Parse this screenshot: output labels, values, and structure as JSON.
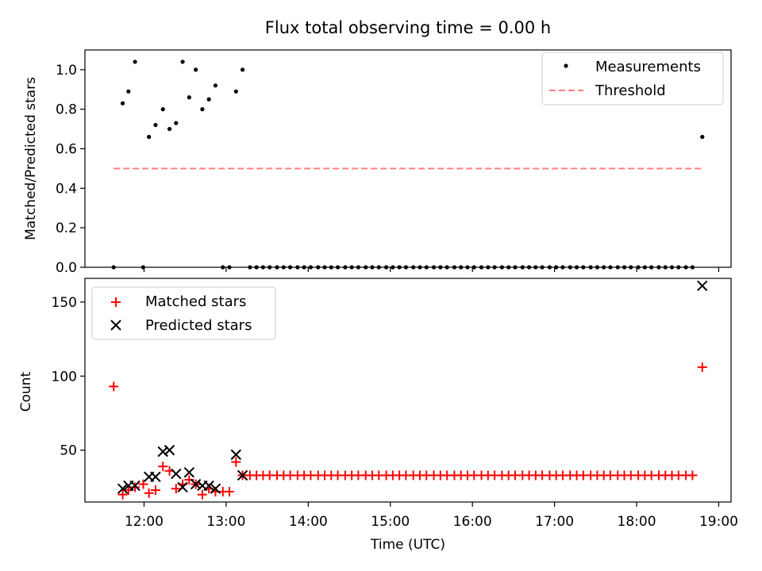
{
  "chart_data": {
    "title": "Flux total observing time = 0.00 h",
    "xlabel": "Time (UTC)",
    "x_ticks": [
      "12:00",
      "13:00",
      "14:00",
      "15:00",
      "16:00",
      "17:00",
      "18:00",
      "19:00"
    ],
    "x_tick_hours": [
      12,
      13,
      14,
      15,
      16,
      17,
      18,
      19
    ],
    "xlim_hours": [
      11.28,
      19.15
    ],
    "panels": [
      {
        "type": "scatter",
        "ylabel": "Matched/Predicted stars",
        "ylim": [
          0.0,
          1.1
        ],
        "yticks": [
          0.0,
          0.2,
          0.4,
          0.6,
          0.8,
          1.0
        ],
        "ytick_labels": [
          "0.0",
          "0.2",
          "0.4",
          "0.6",
          "0.8",
          "1.0"
        ],
        "legend_position": "upper right",
        "series": [
          {
            "name": "Measurements",
            "marker": "dot",
            "color": "#000000",
            "x_hours": [
              11.63,
              11.74,
              11.81,
              11.89,
              11.99,
              12.06,
              12.14,
              12.23,
              12.31,
              12.39,
              12.47,
              12.55,
              12.63,
              12.71,
              12.79,
              12.87,
              12.96,
              13.04,
              13.12,
              13.2,
              13.29,
              13.37,
              13.45,
              13.53,
              13.62,
              13.7,
              13.78,
              13.87,
              13.95,
              14.03,
              14.12,
              14.2,
              14.28,
              14.36,
              14.45,
              14.53,
              14.61,
              14.7,
              14.78,
              14.86,
              14.95,
              15.03,
              15.11,
              15.19,
              15.28,
              15.36,
              15.44,
              15.53,
              15.61,
              15.69,
              15.78,
              15.86,
              15.94,
              16.02,
              16.11,
              16.19,
              16.27,
              16.36,
              16.44,
              16.52,
              16.61,
              16.69,
              16.77,
              16.85,
              16.94,
              17.02,
              17.1,
              17.19,
              17.27,
              17.35,
              17.44,
              17.52,
              17.6,
              17.68,
              17.77,
              17.85,
              17.93,
              18.02,
              18.1,
              18.18,
              18.27,
              18.35,
              18.43,
              18.51,
              18.6,
              18.68,
              18.8
            ],
            "y": [
              0.0,
              0.83,
              0.89,
              1.04,
              0.0,
              0.66,
              0.72,
              0.8,
              0.7,
              0.73,
              1.04,
              0.86,
              1.0,
              0.8,
              0.85,
              0.92,
              0.0,
              0.0,
              0.89,
              1.0,
              0.0,
              0.0,
              0.0,
              0.0,
              0.0,
              0.0,
              0.0,
              0.0,
              0.0,
              0.0,
              0.0,
              0.0,
              0.0,
              0.0,
              0.0,
              0.0,
              0.0,
              0.0,
              0.0,
              0.0,
              0.0,
              0.0,
              0.0,
              0.0,
              0.0,
              0.0,
              0.0,
              0.0,
              0.0,
              0.0,
              0.0,
              0.0,
              0.0,
              0.0,
              0.0,
              0.0,
              0.0,
              0.0,
              0.0,
              0.0,
              0.0,
              0.0,
              0.0,
              0.0,
              0.0,
              0.0,
              0.0,
              0.0,
              0.0,
              0.0,
              0.0,
              0.0,
              0.0,
              0.0,
              0.0,
              0.0,
              0.0,
              0.0,
              0.0,
              0.0,
              0.0,
              0.0,
              0.0,
              0.0,
              0.0,
              0.0,
              0.66
            ]
          },
          {
            "name": "Threshold",
            "marker": "dashed-line",
            "color": "#ff8080",
            "x_hours": [
              11.63,
              18.8
            ],
            "y": [
              0.5,
              0.5
            ]
          }
        ]
      },
      {
        "type": "scatter",
        "ylabel": "Count",
        "ylim": [
          15,
          166
        ],
        "yticks": [
          50,
          100,
          150
        ],
        "ytick_labels": [
          "50",
          "100",
          "150"
        ],
        "legend_position": "upper left",
        "series": [
          {
            "name": "Matched stars",
            "marker": "plus",
            "color": "#ff0000",
            "x_hours": [
              11.63,
              11.74,
              11.81,
              11.89,
              11.99,
              12.06,
              12.14,
              12.23,
              12.31,
              12.39,
              12.47,
              12.55,
              12.63,
              12.71,
              12.79,
              12.87,
              12.96,
              13.04,
              13.12,
              13.2,
              13.29,
              13.37,
              13.45,
              13.53,
              13.62,
              13.7,
              13.78,
              13.87,
              13.95,
              14.03,
              14.12,
              14.2,
              14.28,
              14.36,
              14.45,
              14.53,
              14.61,
              14.7,
              14.78,
              14.86,
              14.95,
              15.03,
              15.11,
              15.19,
              15.28,
              15.36,
              15.44,
              15.53,
              15.61,
              15.69,
              15.78,
              15.86,
              15.94,
              16.02,
              16.11,
              16.19,
              16.27,
              16.36,
              16.44,
              16.52,
              16.61,
              16.69,
              16.77,
              16.85,
              16.94,
              17.02,
              17.1,
              17.19,
              17.27,
              17.35,
              17.44,
              17.52,
              17.6,
              17.68,
              17.77,
              17.85,
              17.93,
              18.02,
              18.1,
              18.18,
              18.27,
              18.35,
              18.43,
              18.51,
              18.6,
              18.68,
              18.8
            ],
            "y": [
              93,
              20,
              23,
              25,
              27,
              21,
              23,
              39,
              36,
              24,
              27,
              30,
              27,
              20,
              24,
              22,
              22,
              22,
              42,
              33,
              33,
              33,
              33,
              33,
              33,
              33,
              33,
              33,
              33,
              33,
              33,
              33,
              33,
              33,
              33,
              33,
              33,
              33,
              33,
              33,
              33,
              33,
              33,
              33,
              33,
              33,
              33,
              33,
              33,
              33,
              33,
              33,
              33,
              33,
              33,
              33,
              33,
              33,
              33,
              33,
              33,
              33,
              33,
              33,
              33,
              33,
              33,
              33,
              33,
              33,
              33,
              33,
              33,
              33,
              33,
              33,
              33,
              33,
              33,
              33,
              33,
              33,
              33,
              33,
              33,
              33,
              106
            ]
          },
          {
            "name": "Predicted stars",
            "marker": "x",
            "color": "#000000",
            "x_hours": [
              11.74,
              11.81,
              11.89,
              12.06,
              12.14,
              12.23,
              12.31,
              12.39,
              12.47,
              12.55,
              12.63,
              12.71,
              12.79,
              12.87,
              13.12,
              13.2,
              18.8
            ],
            "y": [
              24,
              26,
              26,
              32,
              32,
              49,
              50,
              34,
              25,
              35,
              27,
              26,
              26,
              24,
              47,
              33,
              161
            ]
          }
        ]
      }
    ]
  }
}
